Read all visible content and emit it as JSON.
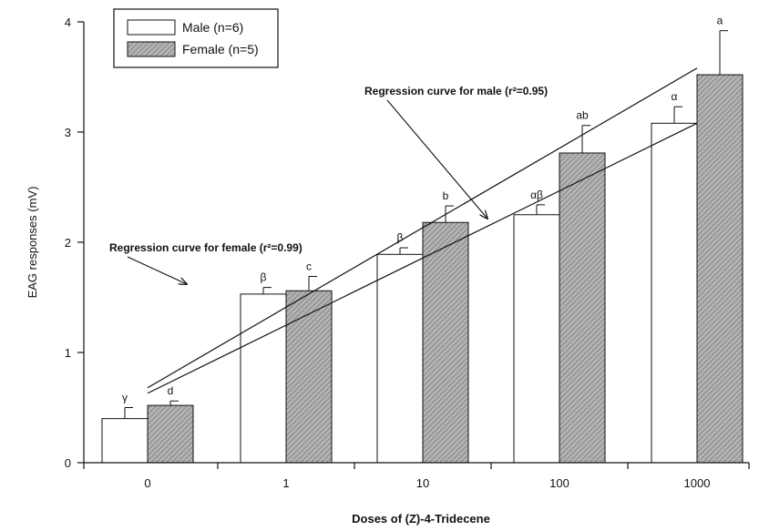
{
  "chart_data": {
    "type": "bar",
    "categories": [
      "0",
      "1",
      "10",
      "100",
      "1000"
    ],
    "xlabel": "Doses of (Z)-4-Tridecene",
    "ylabel": "EAG responses (mV)",
    "ylim": [
      0,
      4
    ],
    "yticks": [
      "0",
      "1",
      "2",
      "3",
      "4"
    ],
    "grid": false,
    "legend_position": "top-left",
    "series": [
      {
        "name": "Male (n=6)",
        "fill": "#ffffff",
        "values": [
          0.4,
          1.53,
          1.89,
          2.25,
          3.08
        ],
        "error": [
          0.1,
          0.06,
          0.06,
          0.09,
          0.15
        ],
        "significance": [
          "γ",
          "β",
          "β",
          "αβ",
          "α"
        ]
      },
      {
        "name": "Female (n=5)",
        "fill": "#a8a8a8",
        "values": [
          0.52,
          1.56,
          2.18,
          2.81,
          3.52
        ],
        "error": [
          0.04,
          0.13,
          0.15,
          0.25,
          0.4
        ],
        "significance": [
          "d",
          "c",
          "b",
          "ab",
          "a"
        ]
      }
    ],
    "annotations": [
      {
        "id": "male",
        "text": "Regression curve for male (r²=0.95)"
      },
      {
        "id": "female",
        "text": "Regression curve for female (r²=0.99)"
      }
    ],
    "regression_lines": [
      {
        "name": "male",
        "from": [
          0,
          0.63
        ],
        "to": [
          4,
          3.08
        ]
      },
      {
        "name": "female",
        "from": [
          0,
          0.68
        ],
        "to": [
          4,
          3.58
        ]
      }
    ]
  }
}
